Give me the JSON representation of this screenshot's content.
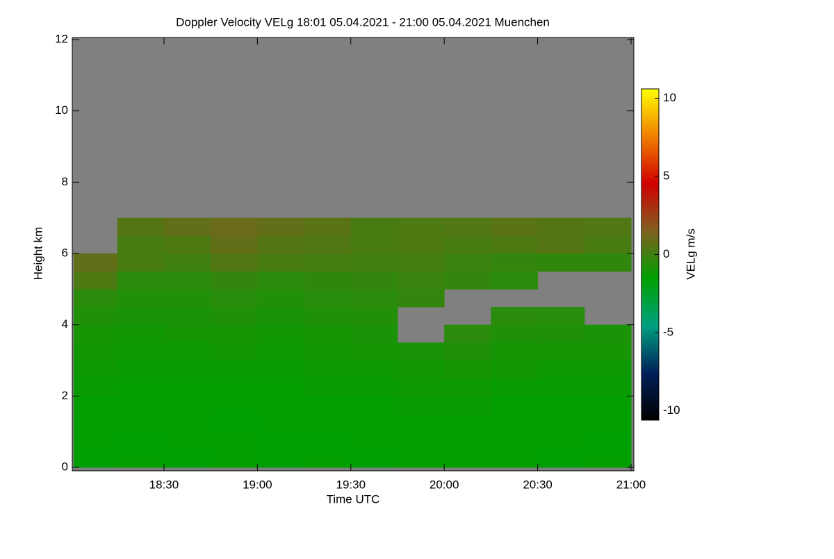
{
  "chart_data": {
    "type": "heatmap",
    "title": "Doppler Velocity VELg   18:01 05.04.2021 - 21:00 05.04.2021 Muenchen",
    "x_label": "Time UTC",
    "y_label": "Height km",
    "colorbar_label": "VELg m/s",
    "xlim": [
      1081,
      1260
    ],
    "xticks": [
      {
        "value": 1110,
        "label": "18:30"
      },
      {
        "value": 1140,
        "label": "19:00"
      },
      {
        "value": 1170,
        "label": "19:30"
      },
      {
        "value": 1200,
        "label": "20:00"
      },
      {
        "value": 1230,
        "label": "20:30"
      },
      {
        "value": 1260,
        "label": "21:00"
      }
    ],
    "ylim": [
      0,
      12
    ],
    "yticks": [
      0,
      2,
      4,
      6,
      8,
      10,
      12
    ],
    "zlim": [
      -10.6,
      10.6
    ],
    "zticks": [
      -10,
      -5,
      0,
      5,
      10
    ],
    "colormap": [
      "#000000",
      "#00205a",
      "#00a080",
      "#00a000",
      "#806020",
      "#d00000",
      "#f08000",
      "#ffff00"
    ],
    "no_data_color": "#808080",
    "x_bins": [
      1081,
      1095,
      1110,
      1125,
      1140,
      1155,
      1170,
      1185,
      1200,
      1215,
      1230,
      1245,
      1260
    ],
    "y_bins": [
      0,
      0.5,
      1,
      1.5,
      2,
      2.5,
      3,
      3.5,
      4,
      4.5,
      5,
      5.5,
      6,
      6.5,
      7
    ],
    "values": [
      [
        -1.6,
        -1.5,
        -1.6,
        -1.5,
        -1.6,
        -1.5,
        -1.6,
        -1.5,
        -1.4,
        -1.5,
        -1.6,
        -1.5
      ],
      [
        -1.5,
        -1.6,
        -1.5,
        -1.5,
        -1.6,
        -1.6,
        -1.5,
        -1.4,
        -1.5,
        -1.5,
        -1.5,
        -1.6
      ],
      [
        -1.5,
        -1.5,
        -1.5,
        -1.6,
        -1.5,
        -1.5,
        -1.5,
        -1.4,
        -1.4,
        -1.5,
        -1.5,
        -1.5
      ],
      [
        -1.4,
        -1.5,
        -1.5,
        -1.5,
        -1.5,
        -1.4,
        -1.4,
        -1.3,
        -1.3,
        -1.4,
        -1.4,
        -1.4
      ],
      [
        -1.3,
        -1.4,
        -1.4,
        -1.4,
        -1.4,
        -1.3,
        -1.3,
        -1.2,
        -1.2,
        -1.3,
        -1.3,
        -1.3
      ],
      [
        -1.2,
        -1.3,
        -1.3,
        -1.3,
        -1.3,
        -1.2,
        -1.2,
        -1.1,
        -1.0,
        -1.1,
        -1.2,
        -1.2
      ],
      [
        -1.1,
        -1.2,
        -1.2,
        -1.1,
        -1.2,
        -1.1,
        -1.0,
        -0.9,
        -0.8,
        -1.0,
        -1.0,
        -1.0
      ],
      [
        -1.0,
        -1.1,
        -1.0,
        -1.0,
        -1.1,
        -1.0,
        -0.9,
        null,
        -0.5,
        -0.8,
        -0.8,
        -0.9
      ],
      [
        -0.8,
        -0.9,
        -0.9,
        -0.8,
        -0.9,
        -0.8,
        -0.7,
        null,
        null,
        -0.5,
        -0.6,
        null
      ],
      [
        -0.5,
        -0.7,
        -0.7,
        -0.6,
        -0.7,
        -0.6,
        -0.5,
        -0.3,
        null,
        null,
        null,
        null
      ],
      [
        0.3,
        -0.5,
        -0.5,
        -0.3,
        -0.5,
        -0.4,
        -0.3,
        -0.2,
        -0.3,
        -0.5,
        null,
        null
      ],
      [
        0.8,
        0.2,
        0.0,
        0.4,
        0.2,
        0.1,
        0.0,
        0.1,
        -0.1,
        -0.3,
        -0.4,
        -0.4
      ],
      [
        null,
        0.2,
        0.3,
        0.8,
        0.5,
        0.4,
        0.2,
        0.3,
        0.2,
        0.3,
        0.5,
        0.2
      ],
      [
        null,
        0.5,
        0.8,
        1.0,
        0.8,
        0.6,
        0.2,
        0.3,
        0.4,
        0.6,
        0.5,
        0.4
      ]
    ]
  }
}
